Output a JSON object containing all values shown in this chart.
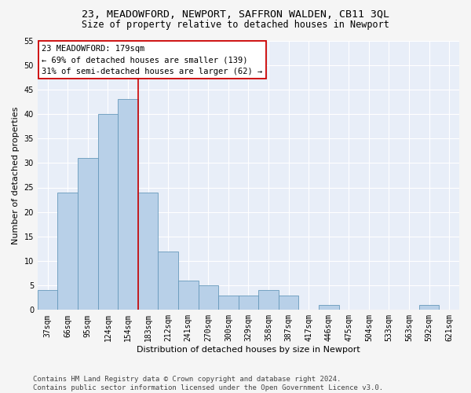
{
  "title": "23, MEADOWFORD, NEWPORT, SAFFRON WALDEN, CB11 3QL",
  "subtitle": "Size of property relative to detached houses in Newport",
  "xlabel": "Distribution of detached houses by size in Newport",
  "ylabel": "Number of detached properties",
  "bar_labels": [
    "37sqm",
    "66sqm",
    "95sqm",
    "124sqm",
    "154sqm",
    "183sqm",
    "212sqm",
    "241sqm",
    "270sqm",
    "300sqm",
    "329sqm",
    "358sqm",
    "387sqm",
    "417sqm",
    "446sqm",
    "475sqm",
    "504sqm",
    "533sqm",
    "563sqm",
    "592sqm",
    "621sqm"
  ],
  "bar_values": [
    4,
    24,
    31,
    40,
    43,
    24,
    12,
    6,
    5,
    3,
    3,
    4,
    3,
    0,
    1,
    0,
    0,
    0,
    0,
    1,
    0
  ],
  "bar_color": "#b8d0e8",
  "bar_edge_color": "#6699bb",
  "background_color": "#e8eef8",
  "fig_background_color": "#f5f5f5",
  "grid_color": "#ffffff",
  "vline_x": 4.5,
  "vline_color": "#cc0000",
  "annotation_text": "23 MEADOWFORD: 179sqm\n← 69% of detached houses are smaller (139)\n31% of semi-detached houses are larger (62) →",
  "annotation_box_color": "#ffffff",
  "annotation_box_edge": "#cc0000",
  "ylim": [
    0,
    55
  ],
  "yticks": [
    0,
    5,
    10,
    15,
    20,
    25,
    30,
    35,
    40,
    45,
    50,
    55
  ],
  "footer_text": "Contains HM Land Registry data © Crown copyright and database right 2024.\nContains public sector information licensed under the Open Government Licence v3.0.",
  "title_fontsize": 9.5,
  "subtitle_fontsize": 8.5,
  "xlabel_fontsize": 8,
  "ylabel_fontsize": 8,
  "tick_fontsize": 7,
  "annotation_fontsize": 7.5,
  "footer_fontsize": 6.5
}
